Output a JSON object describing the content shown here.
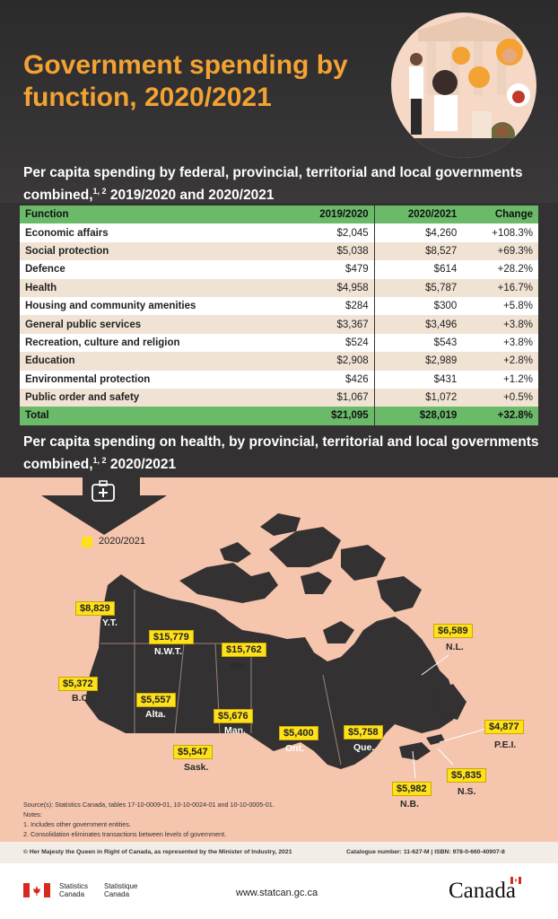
{
  "header": {
    "title": "Government spending by function, 2020/2021"
  },
  "table_section": {
    "subtitle_main": "Per capita spending by federal, provincial, territorial and local governments combined,",
    "subtitle_sup": "1, 2",
    "subtitle_tail": " 2019/2020 and 2020/2021",
    "columns": [
      "Function",
      "2019/2020",
      "2020/2021",
      "Change"
    ],
    "rows": [
      [
        "Economic affairs",
        "$2,045",
        "$4,260",
        "+108.3%"
      ],
      [
        "Social protection",
        "$5,038",
        "$8,527",
        "+69.3%"
      ],
      [
        "Defence",
        "$479",
        "$614",
        "+28.2%"
      ],
      [
        "Health",
        "$4,958",
        "$5,787",
        "+16.7%"
      ],
      [
        "Housing and community amenities",
        "$284",
        "$300",
        "+5.8%"
      ],
      [
        "General public services",
        "$3,367",
        "$3,496",
        "+3.8%"
      ],
      [
        "Recreation, culture and religion",
        "$524",
        "$543",
        "+3.8%"
      ],
      [
        "Education",
        "$2,908",
        "$2,989",
        "+2.8%"
      ],
      [
        "Environmental protection",
        "$426",
        "$431",
        "+1.2%"
      ],
      [
        "Public order and safety",
        "$1,067",
        "$1,072",
        "+0.5%"
      ]
    ],
    "total": [
      "Total",
      "$21,095",
      "$28,019",
      "+32.8%"
    ]
  },
  "map_section": {
    "subtitle_main": "Per capita spending on health, by provincial, territorial and local governments combined,",
    "subtitle_sup": "1, 2",
    "subtitle_tail": " 2020/2021",
    "icon": "medical-kit-icon",
    "legend": "2020/2021",
    "legend_color": "#ffe11b",
    "regions": {
      "yt": {
        "name": "Y.T.",
        "value": "$8,829"
      },
      "nwt": {
        "name": "N.W.T.",
        "value": "$15,779"
      },
      "nvt": {
        "name": "Nvt.",
        "value": "$15,762"
      },
      "bc": {
        "name": "B.C.",
        "value": "$5,372"
      },
      "alta": {
        "name": "Alta.",
        "value": "$5,557"
      },
      "sask": {
        "name": "Sask.",
        "value": "$5,547"
      },
      "man": {
        "name": "Man.",
        "value": "$5,676"
      },
      "ont": {
        "name": "Ont.",
        "value": "$5,400"
      },
      "que": {
        "name": "Que.",
        "value": "$5,758"
      },
      "nl": {
        "name": "N.L.",
        "value": "$6,589"
      },
      "pei": {
        "name": "P.E.I.",
        "value": "$4,877"
      },
      "ns": {
        "name": "N.S.",
        "value": "$5,835"
      },
      "nb": {
        "name": "N.B.",
        "value": "$5,982"
      }
    }
  },
  "notes": {
    "source": "Source(s): Statistics Canada, tables 17-10-0009-01, 10-10-0024-01 and 10-10-0005-01.",
    "heading": "Notes:",
    "note1": "1. Includes other government entities.",
    "note2": "2. Consolidation eliminates transactions between levels of government."
  },
  "footer": {
    "copyright": "© Her Majesty the Queen in Right of Canada, as represented by the Minister of Industry, 2021",
    "catalogue": "Catalogue number: 11-627-M | ISBN: 978-0-660-40907-8",
    "org_en_1": "Statistics",
    "org_en_2": "Canada",
    "org_fr_1": "Statistique",
    "org_fr_2": "Canada",
    "url": "www.statcan.gc.ca",
    "wordmark": "Canada",
    "accent_red": "#d52b1e"
  },
  "colors": {
    "title_orange": "#f3a233",
    "table_green": "#6bba6a",
    "map_bg": "#f5c5ae",
    "label_yellow": "#ffe11b",
    "land_dark": "#333132"
  }
}
